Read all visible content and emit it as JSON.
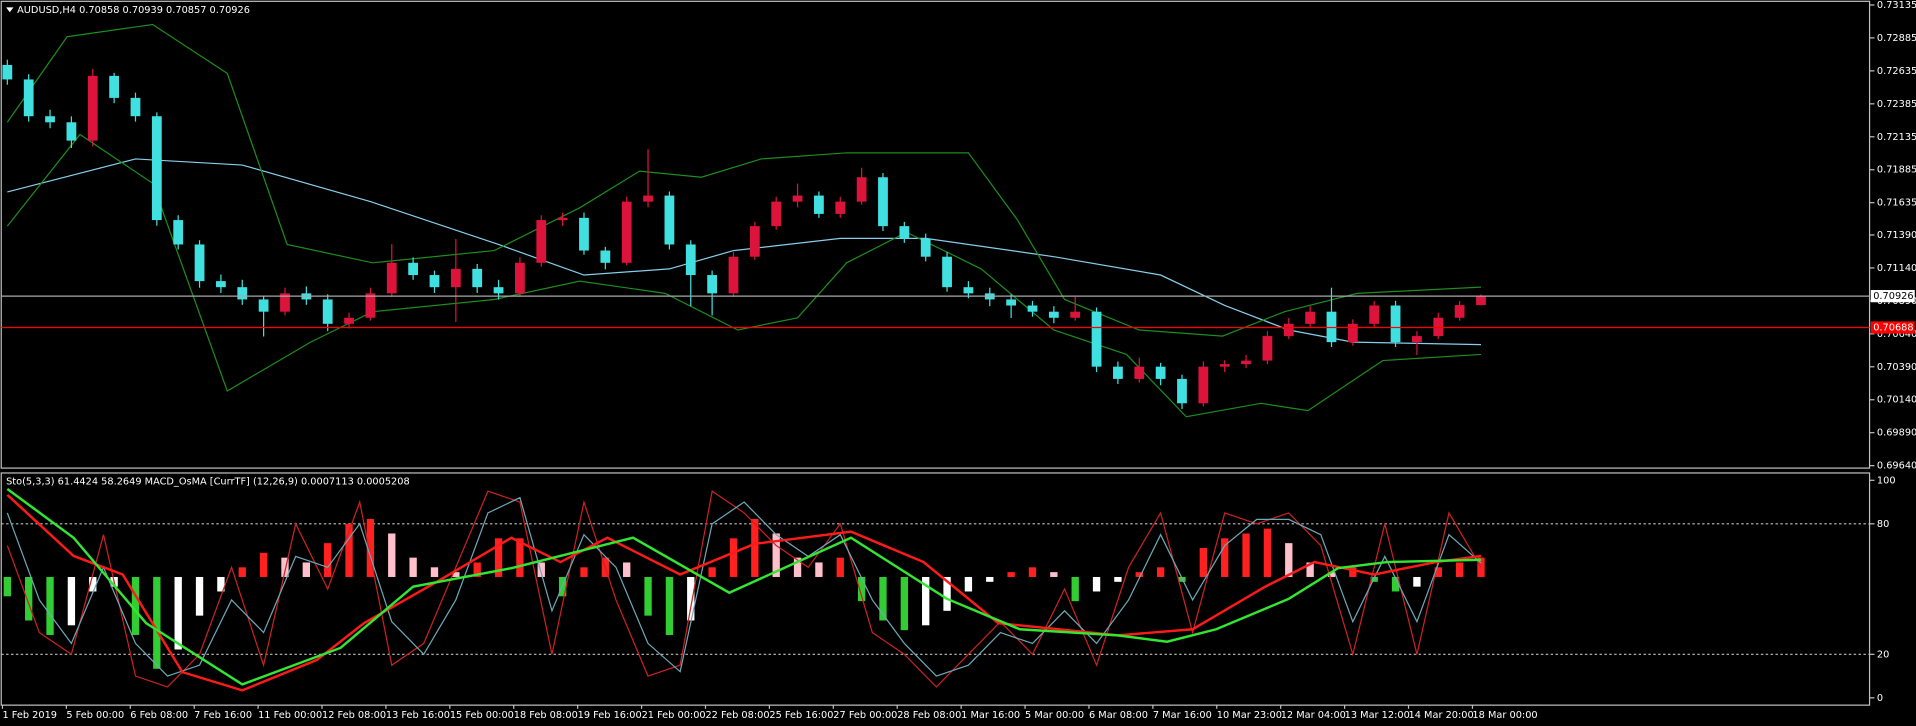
{
  "chart_data": [
    {
      "type": "candlestick",
      "title": "AUDUSD,H4  0.70858 0.70939 0.70857 0.70926",
      "up_color": "#dc143c",
      "down_color": "#40e0e0",
      "ylim": [
        0.6964,
        0.73135
      ],
      "yticks": [
        0.73135,
        0.72885,
        0.72635,
        0.72385,
        0.72135,
        0.71885,
        0.71635,
        {
          "value": 0.7139,
          "label": "0.71390"
        },
        {
          "value": 0.7114,
          "label": "0.71140"
        },
        {
          "value": 0.7089,
          "label": "0.70890"
        },
        {
          "value": 0.7064,
          "label": "0.70640"
        },
        {
          "value": 0.7039,
          "label": "0.70390"
        },
        {
          "value": 0.7014,
          "label": "0.70140"
        },
        {
          "value": 0.6989,
          "label": "0.69890"
        },
        {
          "value": 0.6964,
          "label": "0.69640"
        }
      ],
      "ohlc": [
        [
          0.7268,
          0.7272,
          0.7253,
          0.7257
        ],
        [
          0.7257,
          0.7261,
          0.7225,
          0.72291
        ],
        [
          0.72291,
          0.7234,
          0.722,
          0.72245
        ],
        [
          0.72245,
          0.7229,
          0.7205,
          0.72106
        ],
        [
          0.72106,
          0.7265,
          0.7206,
          0.72597
        ],
        [
          0.72597,
          0.7262,
          0.7239,
          0.7243
        ],
        [
          0.7243,
          0.7247,
          0.7225,
          0.72291
        ],
        [
          0.72291,
          0.7232,
          0.7146,
          0.71503
        ],
        [
          0.71503,
          0.7154,
          0.7128,
          0.71318
        ],
        [
          0.71318,
          0.7135,
          0.7099,
          0.7104
        ],
        [
          0.7104,
          0.7109,
          0.7095,
          0.70994
        ],
        [
          0.70994,
          0.7105,
          0.7086,
          0.70901
        ],
        [
          0.70901,
          0.7093,
          0.7062,
          0.70808
        ],
        [
          0.70808,
          0.7099,
          0.7078,
          0.70947
        ],
        [
          0.70947,
          0.71,
          0.7086,
          0.70901
        ],
        [
          0.70901,
          0.7094,
          0.7066,
          0.70716
        ],
        [
          0.70716,
          0.708,
          0.7068,
          0.70762
        ],
        [
          0.70762,
          0.7099,
          0.7074,
          0.70947
        ],
        [
          0.70947,
          0.7132,
          0.7092,
          0.71179
        ],
        [
          0.71179,
          0.7122,
          0.7105,
          0.71086
        ],
        [
          0.71086,
          0.7112,
          0.7095,
          0.70994
        ],
        [
          0.70994,
          0.7136,
          0.7073,
          0.71133
        ],
        [
          0.71133,
          0.7117,
          0.7095,
          0.70994
        ],
        [
          0.70994,
          0.7105,
          0.709,
          0.70947
        ],
        [
          0.70947,
          0.7122,
          0.7092,
          0.71179
        ],
        [
          0.71179,
          0.7154,
          0.7115,
          0.71503
        ],
        [
          0.71503,
          0.7156,
          0.7146,
          0.7152
        ],
        [
          0.7152,
          0.7156,
          0.7124,
          0.71272
        ],
        [
          0.71272,
          0.713,
          0.7113,
          0.71179
        ],
        [
          0.71179,
          0.7168,
          0.7116,
          0.71643
        ],
        [
          0.71643,
          0.72041,
          0.716,
          0.71689
        ],
        [
          0.71689,
          0.7172,
          0.7128,
          0.71318
        ],
        [
          0.71318,
          0.7135,
          0.7085,
          0.71086
        ],
        [
          0.71086,
          0.7112,
          0.7078,
          0.70947
        ],
        [
          0.70947,
          0.7126,
          0.7092,
          0.71225
        ],
        [
          0.71225,
          0.7149,
          0.712,
          0.71457
        ],
        [
          0.71457,
          0.7168,
          0.7143,
          0.71643
        ],
        [
          0.71643,
          0.7178,
          0.716,
          0.71689
        ],
        [
          0.71689,
          0.7172,
          0.7152,
          0.7155
        ],
        [
          0.7155,
          0.7168,
          0.7152,
          0.71643
        ],
        [
          0.71643,
          0.719,
          0.7162,
          0.71828
        ],
        [
          0.71828,
          0.7186,
          0.7142,
          0.71457
        ],
        [
          0.71457,
          0.7149,
          0.7133,
          0.71364
        ],
        [
          0.71364,
          0.714,
          0.7119,
          0.71225
        ],
        [
          0.71225,
          0.7126,
          0.7096,
          0.70994
        ],
        [
          0.70994,
          0.7104,
          0.7091,
          0.70947
        ],
        [
          0.70947,
          0.7099,
          0.7085,
          0.70901
        ],
        [
          0.70901,
          0.7094,
          0.7076,
          0.70855
        ],
        [
          0.70855,
          0.7089,
          0.7077,
          0.70808
        ],
        [
          0.70808,
          0.7085,
          0.7072,
          0.70762
        ],
        [
          0.70762,
          0.7092,
          0.7074,
          0.70808
        ],
        [
          0.70808,
          0.7084,
          0.7035,
          0.70391
        ],
        [
          0.70391,
          0.7043,
          0.7026,
          0.70298
        ],
        [
          0.70298,
          0.7046,
          0.7027,
          0.70391
        ],
        [
          0.70391,
          0.7042,
          0.7025,
          0.70298
        ],
        [
          0.70298,
          0.7033,
          0.7007,
          0.70113
        ],
        [
          0.70113,
          0.7043,
          0.7009,
          0.70391
        ],
        [
          0.70391,
          0.7044,
          0.7035,
          0.7041
        ],
        [
          0.7041,
          0.7048,
          0.7038,
          0.70437
        ],
        [
          0.70437,
          0.7066,
          0.7041,
          0.70623
        ],
        [
          0.70623,
          0.7076,
          0.706,
          0.70716
        ],
        [
          0.70716,
          0.7085,
          0.7069,
          0.70808
        ],
        [
          0.70808,
          0.7099,
          0.7054,
          0.70577
        ],
        [
          0.70577,
          0.7075,
          0.7055,
          0.70716
        ],
        [
          0.70716,
          0.7089,
          0.7069,
          0.70855
        ],
        [
          0.70855,
          0.7089,
          0.7054,
          0.70577
        ],
        [
          0.70577,
          0.7066,
          0.7048,
          0.70623
        ],
        [
          0.70623,
          0.708,
          0.706,
          0.70762
        ],
        [
          0.70762,
          0.7089,
          0.7074,
          0.70858
        ],
        [
          0.70858,
          0.70939,
          0.70857,
          0.70926
        ]
      ],
      "lines": [
        {
          "color": "#87ceeb",
          "x": [
            0,
            6,
            11,
            17,
            23,
            27,
            31,
            34,
            39,
            43,
            49,
            54,
            57,
            60,
            63,
            69
          ],
          "values": [
            0.71717,
            0.71967,
            0.71921,
            0.71643,
            0.71318,
            0.71086,
            0.71133,
            0.71272,
            0.71364,
            0.71364,
            0.71225,
            0.71086,
            0.70855,
            0.70669,
            0.70577,
            0.70558
          ]
        },
        {
          "color": "#1e8c1e",
          "x": [
            0,
            2.8,
            6.8,
            10.3,
            13.1,
            17.1,
            22.8,
            26.8,
            29.6,
            32.5,
            35.3,
            39.3,
            42.7,
            45,
            47.3,
            49.5,
            53,
            56.9,
            59.8,
            63.2,
            69
          ],
          "values": [
            0.72245,
            0.72894,
            0.72987,
            0.72616,
            0.71318,
            0.71179,
            0.71272,
            0.71596,
            0.71874,
            0.71828,
            0.71967,
            0.72013,
            0.72013,
            0.72013,
            0.71503,
            0.70901,
            0.70669,
            0.70623,
            0.70808,
            0.70947,
            0.70994
          ]
        },
        {
          "color": "#1e8c1e",
          "x": [
            0,
            3.4,
            6.8,
            10.3,
            14.2,
            17.1,
            22.8,
            26.8,
            30.8,
            34.2,
            37,
            39.3,
            42.1,
            45.6,
            49,
            52.4,
            55.2,
            58.7,
            60.9,
            64.4,
            69
          ],
          "values": [
            0.71457,
            0.72152,
            0.71782,
            0.70206,
            0.70577,
            0.70808,
            0.70901,
            0.7104,
            0.70947,
            0.70669,
            0.70762,
            0.71179,
            0.71411,
            0.71133,
            0.70669,
            0.70484,
            0.70011,
            0.70113,
            0.70057,
            0.70437,
            0.70484
          ]
        }
      ],
      "levels": [
        {
          "value": 0.70926,
          "color": "#a9a9a9",
          "box_color": "#ffffff",
          "text_color": "#000000"
        },
        {
          "value": 0.70688,
          "color": "#ff0000",
          "box_color": "#ff0000",
          "text_color": "#ffffff"
        }
      ]
    },
    {
      "type": "oscillator",
      "title": "Sto(5,3,3) 61.4424 58.2649  MACD_OsMA [CurrTF] (12,26,9) 0.0007113 0.0005208",
      "ylim": [
        0,
        100
      ],
      "yticks": [
        0,
        20,
        80,
        100
      ],
      "y2lim": [
        -0.0025,
        0.002
      ],
      "histogram_colors": [
        "#ff2020",
        "#ffc0cb",
        "#32cd32",
        "#ffffff"
      ],
      "histogram": [
        -0.0004,
        -0.0009,
        -0.0012,
        -0.001,
        -0.0003,
        -0.0002,
        -0.0012,
        -0.0019,
        -0.0015,
        -0.0008,
        -0.0003,
        0.0002,
        0.0005,
        0.0004,
        0.0003,
        0.0007,
        0.0011,
        0.0012,
        0.0009,
        0.0004,
        0.0002,
        0.0001,
        0.0003,
        0.0008,
        0.0008,
        0.0003,
        -0.0004,
        0.0002,
        0.0004,
        0.0003,
        -0.0008,
        -0.0012,
        -0.0009,
        0.0002,
        0.0008,
        0.0012,
        0.0009,
        0.0004,
        0.0003,
        0.0004,
        -0.0005,
        -0.0009,
        -0.0011,
        -0.001,
        -0.0007,
        -0.0003,
        -0.0001,
        0.0001,
        0.0002,
        0.0001,
        -0.0005,
        -0.0003,
        -0.0001,
        0.0001,
        0.0002,
        -0.0001,
        0.0006,
        0.0008,
        0.0009,
        0.001,
        0.0007,
        0.0003,
        0.0001,
        0.0002,
        -0.0001,
        -0.0003,
        -0.0002,
        0.0002,
        0.0003,
        0.0004
      ],
      "lines": [
        {
          "color": "#cc2222",
          "width": 1,
          "x": [
            0,
            1.5,
            3,
            4.5,
            6,
            7.5,
            9,
            10.5,
            12,
            13.5,
            15,
            16.5,
            18,
            19.5,
            21,
            22.5,
            24,
            25.5,
            27,
            28.5,
            30,
            31.5,
            33,
            34.5,
            36,
            37.5,
            39,
            40.5,
            42,
            43.5,
            45,
            46.5,
            48,
            49.5,
            51,
            52.5,
            54,
            55.5,
            57,
            58.5,
            60,
            61.5,
            63,
            64.5,
            66,
            67.5,
            69
          ],
          "values": [
            70,
            30,
            20,
            75,
            10,
            5,
            20,
            60,
            15,
            80,
            50,
            90,
            15,
            25,
            60,
            95,
            90,
            20,
            90,
            45,
            10,
            15,
            95,
            85,
            70,
            60,
            80,
            30,
            20,
            5,
            20,
            35,
            20,
            50,
            15,
            60,
            85,
            30,
            85,
            80,
            85,
            70,
            20,
            80,
            20,
            85,
            60
          ]
        },
        {
          "color": "#6fa8b8",
          "width": 1,
          "x": [
            0,
            1.5,
            3,
            4.5,
            6,
            7.5,
            9,
            10.5,
            12,
            13.5,
            15,
            16.5,
            18,
            19.5,
            21,
            22.5,
            24,
            25.5,
            27,
            28.5,
            30,
            31.5,
            33,
            34.5,
            36,
            37.5,
            39,
            40.5,
            42,
            43.5,
            45,
            46.5,
            48,
            49.5,
            51,
            52.5,
            54,
            55.5,
            57,
            58.5,
            60,
            61.5,
            63,
            64.5,
            66,
            67.5,
            69
          ],
          "values": [
            85,
            45,
            25,
            60,
            25,
            10,
            15,
            45,
            30,
            65,
            60,
            80,
            35,
            20,
            45,
            85,
            92,
            40,
            75,
            60,
            25,
            12,
            80,
            90,
            75,
            65,
            75,
            45,
            25,
            10,
            15,
            30,
            25,
            40,
            25,
            45,
            75,
            45,
            70,
            82,
            82,
            75,
            35,
            65,
            35,
            75,
            62
          ]
        },
        {
          "color": "#ff1a1a",
          "width": 2,
          "x": [
            0,
            3.1,
            5.4,
            8.2,
            11,
            14.5,
            16.7,
            20.2,
            23.6,
            25.9,
            28.1,
            31.5,
            35,
            39.5,
            42.9,
            46.4,
            49.2,
            52,
            55.5,
            58.9,
            61.2,
            64,
            66.9,
            69
          ],
          "values": [
            93.3,
            65.2,
            56.7,
            11.8,
            3.4,
            17.4,
            34.3,
            53.9,
            73.6,
            62.4,
            73.6,
            56.7,
            70.8,
            76.4,
            62.4,
            34.3,
            31.5,
            28.7,
            31.5,
            51.1,
            62.4,
            56.7,
            62.4,
            65.2
          ]
        },
        {
          "color": "#32e632",
          "width": 2,
          "x": [
            0,
            3.1,
            6.5,
            11,
            15.6,
            19,
            23.6,
            29.3,
            33.8,
            39.5,
            44,
            47.4,
            52,
            54.3,
            56.6,
            60,
            62.3,
            64.6,
            69
          ],
          "values": [
            96,
            73.6,
            34.3,
            6.2,
            23,
            51.1,
            59.6,
            73.6,
            48.3,
            73.6,
            45.5,
            31.5,
            28.7,
            25.8,
            31.5,
            45.5,
            59.6,
            62.4,
            63.5
          ]
        }
      ],
      "x_labels": [
        "1 Feb 2019",
        "5 Feb 00:00",
        "6 Feb 08:00",
        "7 Feb 16:00",
        "11 Feb 00:00",
        "12 Feb 08:00",
        "13 Feb 16:00",
        "15 Feb 00:00",
        "18 Feb 08:00",
        "19 Feb 16:00",
        "21 Feb 00:00",
        "22 Feb 08:00",
        "25 Feb 16:00",
        "27 Feb 00:00",
        "28 Feb 08:00",
        "1 Mar 16:00",
        "5 Mar 00:00",
        "6 Mar 08:00",
        "7 Mar 16:00",
        "10 Mar 23:00",
        "12 Mar 04:00",
        "13 Mar 12:00",
        "14 Mar 20:00",
        "18 Mar 00:00"
      ]
    }
  ]
}
